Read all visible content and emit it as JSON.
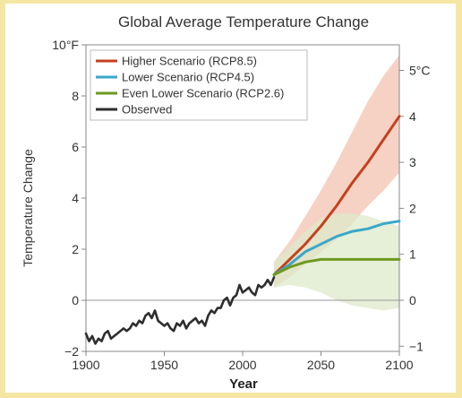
{
  "chart_data": {
    "type": "line",
    "title": "Global Average Temperature Change",
    "xlabel": "Year",
    "ylabel": "Temperature Change",
    "xlim": [
      1900,
      2100
    ],
    "ylim": [
      -2,
      10
    ],
    "x_ticks": [
      "1900",
      "1950",
      "2000",
      "2050",
      "2100"
    ],
    "y_left_ticks": [
      {
        "value": 10,
        "label": "10°F"
      },
      {
        "value": 8,
        "label": "8"
      },
      {
        "value": 6,
        "label": "6"
      },
      {
        "value": 4,
        "label": "4"
      },
      {
        "value": 2,
        "label": "2"
      },
      {
        "value": 0,
        "label": "0"
      },
      {
        "value": -2,
        "label": "−2"
      }
    ],
    "y_right_ticks": [
      {
        "value": 5,
        "label": "5°C"
      },
      {
        "value": 4,
        "label": "4"
      },
      {
        "value": 3,
        "label": "3"
      },
      {
        "value": 2,
        "label": "2"
      },
      {
        "value": 1,
        "label": "1"
      },
      {
        "value": 0,
        "label": "0"
      },
      {
        "value": -1,
        "label": "−1"
      }
    ],
    "right_axis_scale": 1.8,
    "grid": false,
    "legend_position": "top-left",
    "series": [
      {
        "name": "Higher Scenario (RCP8.5)",
        "color": "#c4411f",
        "x": [
          2020,
          2030,
          2040,
          2050,
          2060,
          2070,
          2080,
          2090,
          2100
        ],
        "y": [
          1.0,
          1.6,
          2.2,
          2.9,
          3.7,
          4.6,
          5.4,
          6.3,
          7.2
        ],
        "band_color": "#f3c3b2",
        "band_low": [
          0.5,
          0.9,
          1.4,
          1.9,
          2.4,
          3.0,
          3.7,
          4.3,
          5.0
        ],
        "band_high": [
          1.5,
          2.3,
          3.3,
          4.3,
          5.4,
          6.6,
          7.8,
          8.8,
          9.6
        ]
      },
      {
        "name": "Lower Scenario (RCP4.5)",
        "color": "#3aa7c9",
        "x": [
          2020,
          2030,
          2040,
          2050,
          2060,
          2070,
          2080,
          2090,
          2100
        ],
        "y": [
          1.0,
          1.4,
          1.9,
          2.2,
          2.5,
          2.7,
          2.8,
          3.0,
          3.1
        ]
      },
      {
        "name": "Even Lower Scenario (RCP2.6)",
        "color": "#6d9a1f",
        "x": [
          2020,
          2030,
          2040,
          2050,
          2060,
          2070,
          2080,
          2090,
          2100
        ],
        "y": [
          1.0,
          1.3,
          1.5,
          1.6,
          1.6,
          1.6,
          1.6,
          1.6,
          1.6
        ],
        "band_color": "#dde9c9",
        "band_low": [
          0.5,
          0.6,
          0.5,
          0.3,
          0.0,
          -0.2,
          -0.3,
          -0.4,
          -0.3
        ],
        "band_high": [
          1.5,
          2.1,
          2.7,
          3.2,
          3.4,
          3.4,
          3.3,
          3.1,
          2.9
        ]
      },
      {
        "name": "Observed",
        "color": "#2e2e2e",
        "x": [
          1900,
          1902,
          1904,
          1906,
          1908,
          1910,
          1912,
          1914,
          1916,
          1918,
          1920,
          1922,
          1924,
          1926,
          1928,
          1930,
          1932,
          1934,
          1936,
          1938,
          1940,
          1942,
          1944,
          1946,
          1948,
          1950,
          1952,
          1954,
          1956,
          1958,
          1960,
          1962,
          1964,
          1966,
          1968,
          1970,
          1972,
          1974,
          1976,
          1978,
          1980,
          1982,
          1984,
          1986,
          1988,
          1990,
          1992,
          1994,
          1996,
          1998,
          2000,
          2002,
          2004,
          2006,
          2008,
          2010,
          2012,
          2014,
          2016,
          2018,
          2020
        ],
        "y": [
          -1.3,
          -1.6,
          -1.4,
          -1.7,
          -1.5,
          -1.6,
          -1.3,
          -1.2,
          -1.5,
          -1.4,
          -1.3,
          -1.2,
          -1.1,
          -1.2,
          -1.1,
          -0.9,
          -1.0,
          -0.8,
          -0.9,
          -0.6,
          -0.5,
          -0.7,
          -0.4,
          -0.8,
          -0.9,
          -1.0,
          -0.9,
          -1.1,
          -1.2,
          -0.9,
          -1.0,
          -0.8,
          -1.1,
          -0.9,
          -0.8,
          -0.7,
          -0.9,
          -0.8,
          -1.0,
          -0.6,
          -0.4,
          -0.5,
          -0.3,
          -0.3,
          0.0,
          0.1,
          -0.2,
          0.1,
          0.2,
          0.6,
          0.3,
          0.4,
          0.5,
          0.3,
          0.2,
          0.6,
          0.5,
          0.6,
          0.8,
          0.6,
          0.9
        ]
      }
    ]
  }
}
